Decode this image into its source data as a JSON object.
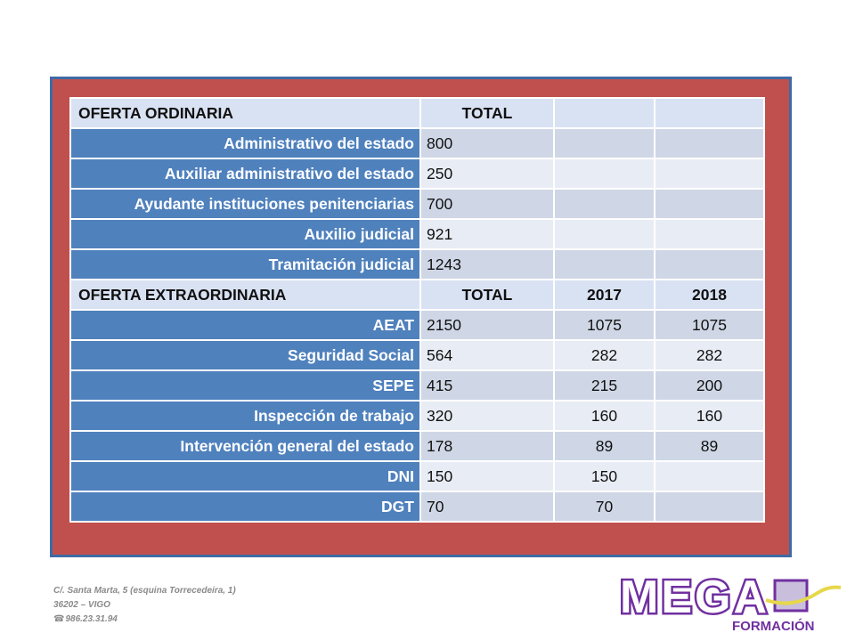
{
  "ordinary": {
    "header": {
      "label": "OFERTA ORDINARIA",
      "total": "TOTAL",
      "y1": "",
      "y2": ""
    },
    "rows": [
      {
        "name": "Administrativo del estado",
        "total": "800",
        "y1": "",
        "y2": ""
      },
      {
        "name": "Auxiliar administrativo del estado",
        "total": "250",
        "y1": "",
        "y2": ""
      },
      {
        "name": "Ayudante instituciones penitenciarias",
        "total": "700",
        "y1": "",
        "y2": ""
      },
      {
        "name": "Auxilio judicial",
        "total": "921",
        "y1": "",
        "y2": ""
      },
      {
        "name": "Tramitación judicial",
        "total": "1243",
        "y1": "",
        "y2": ""
      }
    ]
  },
  "extraordinary": {
    "header": {
      "label": "OFERTA EXTRAORDINARIA",
      "total": "TOTAL",
      "y1": "2017",
      "y2": "2018"
    },
    "rows": [
      {
        "name": "AEAT",
        "total": "2150",
        "y1": "1075",
        "y2": "1075"
      },
      {
        "name": "Seguridad Social",
        "total": "564",
        "y1": "282",
        "y2": "282"
      },
      {
        "name": "SEPE",
        "total": "415",
        "y1": "215",
        "y2": "200"
      },
      {
        "name": "Inspección de trabajo",
        "total": "320",
        "y1": "160",
        "y2": "160"
      },
      {
        "name": "Intervención general del estado",
        "total": "178",
        "y1": "89",
        "y2": "89"
      },
      {
        "name": "DNI",
        "total": "150",
        "y1": "150",
        "y2": ""
      },
      {
        "name": "DGT",
        "total": "70",
        "y1": "70",
        "y2": ""
      }
    ]
  },
  "footer": {
    "address_line1": "C/. Santa Marta, 5 (esquina Torrecedeira, 1)",
    "address_line2": "36202 – VIGO",
    "phone": "986.23.31.94",
    "phone_icon": "telephone-icon"
  },
  "logo": {
    "word": "MEGA",
    "subtitle": "FORMACIÓN"
  },
  "colors": {
    "frame": "#c0504d",
    "frame_border": "#3f6ba5",
    "label_cell": "#4f81bd",
    "header_row": "#d9e2f3",
    "logo_purple": "#7030a0",
    "logo_yellow": "#e6d84a"
  }
}
